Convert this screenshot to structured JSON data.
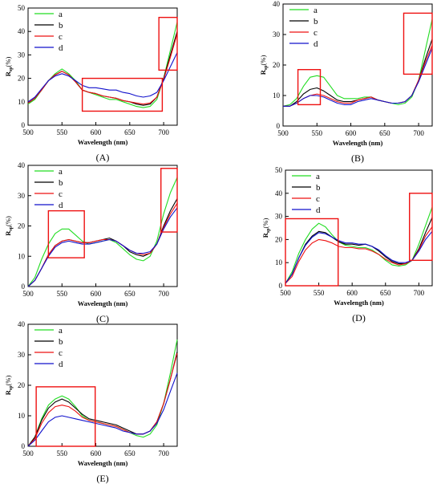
{
  "figure": {
    "colors": {
      "a": "#22dd22",
      "b": "#000000",
      "c": "#ee1111",
      "d": "#1111cc",
      "box": "#ee1111"
    }
  },
  "chart_data": [
    {
      "panel": "(A)",
      "type": "line",
      "xlabel": "Wavelength (nm)",
      "ylabel": "R",
      "ylabel_sub": "sp",
      "ylabel_unit": "(%)",
      "xlim": [
        500,
        720
      ],
      "ylim": [
        0,
        50
      ],
      "xticks": [
        500,
        550,
        600,
        650,
        700
      ],
      "yticks": [
        0,
        10,
        20,
        30,
        40,
        50
      ],
      "grid": false,
      "legend": "top-left",
      "x": [
        500,
        510,
        520,
        530,
        540,
        550,
        560,
        570,
        580,
        590,
        600,
        610,
        620,
        630,
        640,
        650,
        660,
        670,
        680,
        690,
        700,
        710,
        720
      ],
      "series": [
        {
          "name": "a",
          "values": [
            9,
            11,
            15,
            19,
            22,
            24,
            22,
            19,
            15,
            14,
            13,
            12,
            11,
            11,
            10,
            9,
            8,
            7.5,
            8,
            11,
            20,
            32,
            44
          ]
        },
        {
          "name": "b",
          "values": [
            9.5,
            11.5,
            15,
            19,
            21.5,
            23,
            21.5,
            18.5,
            15,
            14,
            13.5,
            12.5,
            12,
            11.5,
            10.5,
            10,
            9,
            8.5,
            9,
            12,
            20,
            30,
            40
          ]
        },
        {
          "name": "c",
          "values": [
            9.5,
            11.5,
            15,
            19,
            21.5,
            23,
            21.5,
            18.5,
            15,
            14,
            13.5,
            12.5,
            12,
            11.5,
            10.5,
            10,
            9.5,
            9,
            9.5,
            12,
            19.5,
            29,
            39
          ]
        },
        {
          "name": "d",
          "values": [
            10,
            12,
            15.5,
            19,
            21,
            22,
            21,
            19,
            17,
            16,
            16,
            15.5,
            15,
            15,
            14,
            13.5,
            12.5,
            12,
            12.5,
            14,
            19,
            25,
            31
          ]
        }
      ],
      "boxes": [
        {
          "x": [
            580,
            698
          ],
          "y": [
            6,
            20
          ]
        },
        {
          "x": [
            693,
            720
          ],
          "y": [
            23.5,
            46
          ]
        }
      ]
    },
    {
      "panel": "(B)",
      "type": "line",
      "xlabel": "Wavelength (nm)",
      "ylabel": "R",
      "ylabel_sub": "sp",
      "ylabel_unit": "(%)",
      "xlim": [
        500,
        720
      ],
      "ylim": [
        0,
        40
      ],
      "xticks": [
        500,
        550,
        600,
        650,
        700
      ],
      "yticks": [
        0,
        10,
        20,
        30,
        40
      ],
      "grid": false,
      "legend": "top-left",
      "x": [
        500,
        510,
        520,
        530,
        540,
        550,
        560,
        570,
        580,
        590,
        600,
        610,
        620,
        630,
        640,
        650,
        660,
        670,
        680,
        690,
        700,
        710,
        720
      ],
      "series": [
        {
          "name": "a",
          "values": [
            6.5,
            7,
            9,
            13,
            16,
            16.5,
            16,
            13,
            10,
            9,
            9,
            9,
            9.5,
            9.5,
            8.5,
            8,
            7.5,
            7,
            7.5,
            9.5,
            15,
            25,
            35
          ]
        },
        {
          "name": "b",
          "values": [
            6.5,
            6.5,
            8,
            10.5,
            12,
            12.5,
            11.5,
            10,
            8.5,
            8,
            8,
            8.5,
            9,
            9.5,
            8.5,
            8,
            7.5,
            7.5,
            8,
            10,
            15,
            22,
            28.5
          ]
        },
        {
          "name": "c",
          "values": [
            6.5,
            6.5,
            7.5,
            9,
            10,
            10.5,
            10,
            9,
            8,
            7.5,
            7.5,
            8.5,
            9,
            9.5,
            8.5,
            8,
            7.5,
            7.5,
            8,
            10,
            15,
            21,
            26.5
          ]
        },
        {
          "name": "d",
          "values": [
            6.5,
            6.5,
            7.5,
            9,
            10,
            10,
            9.5,
            8.5,
            7.5,
            7,
            7,
            8,
            8.5,
            9,
            8.5,
            8,
            7.5,
            7.5,
            8,
            10,
            14.5,
            20,
            25.5
          ]
        }
      ],
      "boxes": [
        {
          "x": [
            522,
            555
          ],
          "y": [
            7,
            18.5
          ]
        },
        {
          "x": [
            678,
            720
          ],
          "y": [
            17,
            37
          ]
        }
      ]
    },
    {
      "panel": "(C)",
      "type": "line",
      "xlabel": "Wavelength (nm)",
      "ylabel": "R",
      "ylabel_sub": "sp",
      "ylabel_unit": "(%)",
      "xlim": [
        500,
        720
      ],
      "ylim": [
        0,
        40
      ],
      "xticks": [
        500,
        550,
        600,
        650,
        700
      ],
      "yticks": [
        0,
        10,
        20,
        30,
        40
      ],
      "grid": false,
      "legend": "top-left",
      "x": [
        500,
        510,
        520,
        530,
        540,
        550,
        560,
        570,
        580,
        590,
        600,
        610,
        620,
        630,
        640,
        650,
        660,
        670,
        680,
        690,
        700,
        710,
        720
      ],
      "series": [
        {
          "name": "a",
          "values": [
            0,
            3,
            9,
            14,
            17.5,
            19,
            19,
            17,
            15,
            14,
            14.5,
            15,
            15.5,
            14.5,
            12.5,
            10.5,
            9,
            8.5,
            10,
            15,
            24,
            31,
            36
          ]
        },
        {
          "name": "b",
          "values": [
            0,
            2,
            6,
            10.5,
            13.5,
            15,
            15.5,
            15,
            14.5,
            14.5,
            15,
            15.5,
            16,
            15,
            13.5,
            11.5,
            10.5,
            10,
            11,
            14,
            20,
            25,
            29
          ]
        },
        {
          "name": "c",
          "values": [
            0,
            2,
            6,
            10.5,
            13.5,
            15,
            15.5,
            15,
            14.5,
            14.5,
            15,
            15.5,
            15.5,
            15,
            13.5,
            12,
            11,
            10.5,
            11,
            14,
            19.5,
            24,
            27.5
          ]
        },
        {
          "name": "d",
          "values": [
            0,
            2,
            6,
            10,
            13,
            14.5,
            15,
            14.5,
            14,
            14,
            14.5,
            15,
            15.5,
            15,
            13.5,
            12,
            11,
            11,
            11.5,
            14,
            19,
            23,
            26
          ]
        }
      ],
      "boxes": [
        {
          "x": [
            530,
            583
          ],
          "y": [
            9.5,
            25
          ]
        },
        {
          "x": [
            696,
            720
          ],
          "y": [
            18,
            39
          ]
        }
      ]
    },
    {
      "panel": "(D)",
      "type": "line",
      "xlabel": "Wavelength (nm)",
      "ylabel": "R",
      "ylabel_sub": "sp",
      "ylabel_unit": "(%)",
      "xlim": [
        500,
        720
      ],
      "ylim": [
        0,
        50
      ],
      "xticks": [
        500,
        550,
        600,
        650,
        700
      ],
      "yticks": [
        0,
        10,
        20,
        30,
        40,
        50
      ],
      "grid": false,
      "legend": "top-left",
      "x": [
        500,
        510,
        520,
        530,
        540,
        550,
        560,
        570,
        580,
        590,
        600,
        610,
        620,
        630,
        640,
        650,
        660,
        670,
        680,
        690,
        700,
        710,
        720
      ],
      "series": [
        {
          "name": "a",
          "values": [
            1,
            6,
            14,
            20,
            24.5,
            27,
            25.5,
            22,
            19,
            17.5,
            17,
            16.5,
            16.5,
            15.5,
            13.5,
            11,
            9,
            8.5,
            9,
            11,
            18,
            26,
            34
          ]
        },
        {
          "name": "b",
          "values": [
            1,
            5,
            12,
            18,
            21.5,
            23.5,
            23,
            21,
            19,
            18,
            18,
            17.5,
            18,
            17,
            15,
            12.5,
            10.5,
            9.5,
            9.5,
            11,
            16,
            23,
            29.5
          ]
        },
        {
          "name": "c",
          "values": [
            1,
            4,
            10.5,
            15.5,
            18.5,
            20,
            19.5,
            18.5,
            17,
            16.5,
            16.5,
            16,
            16,
            15,
            13.5,
            11.5,
            10,
            9,
            9.5,
            11,
            15.5,
            21.5,
            25.5
          ]
        },
        {
          "name": "d",
          "values": [
            1,
            5,
            12,
            17.5,
            21,
            23,
            22.5,
            21,
            19.5,
            18.5,
            18.5,
            18,
            18,
            17,
            15.5,
            13,
            11,
            10,
            10,
            11,
            15,
            20,
            23.5
          ]
        }
      ],
      "boxes": [
        {
          "x": [
            500,
            579
          ],
          "y": [
            0,
            29
          ]
        },
        {
          "x": [
            686,
            720
          ],
          "y": [
            11,
            40
          ]
        }
      ]
    },
    {
      "panel": "(E)",
      "type": "line",
      "xlabel": "Wavelength (nm)",
      "ylabel": "R",
      "ylabel_sub": "sp",
      "ylabel_unit": "(%)",
      "xlim": [
        500,
        720
      ],
      "ylim": [
        0,
        40
      ],
      "xticks": [
        500,
        550,
        600,
        650,
        700
      ],
      "yticks": [
        0,
        10,
        20,
        30,
        40
      ],
      "grid": false,
      "legend": "top-left",
      "x": [
        500,
        510,
        520,
        530,
        540,
        550,
        560,
        570,
        580,
        590,
        600,
        610,
        620,
        630,
        640,
        650,
        660,
        670,
        680,
        690,
        700,
        710,
        720
      ],
      "series": [
        {
          "name": "a",
          "values": [
            0,
            3,
            9,
            13.5,
            15.5,
            16.5,
            15.5,
            13,
            10,
            8.5,
            8,
            7.5,
            7,
            6.5,
            5.5,
            4.5,
            3.5,
            3,
            4,
            7,
            14,
            24,
            35
          ]
        },
        {
          "name": "b",
          "values": [
            0,
            3,
            8.5,
            12.5,
            14.5,
            15.5,
            14.5,
            12.5,
            10.5,
            9,
            8.5,
            8,
            7.5,
            7,
            6,
            5,
            4,
            4,
            5,
            8,
            14,
            22,
            31
          ]
        },
        {
          "name": "c",
          "values": [
            0,
            2.5,
            7.5,
            11,
            13,
            13.5,
            13,
            11.5,
            9.5,
            8.5,
            8,
            7.5,
            7,
            6.5,
            5.5,
            4.5,
            4,
            4,
            5,
            8,
            14,
            22,
            30.5
          ]
        },
        {
          "name": "d",
          "values": [
            0,
            2,
            5,
            8,
            9.5,
            10,
            9.5,
            9,
            8.5,
            8,
            7.5,
            7,
            6.5,
            6,
            5,
            4.5,
            4,
            4,
            5,
            7.5,
            12,
            18,
            24
          ]
        }
      ],
      "boxes": [
        {
          "x": [
            512,
            599
          ],
          "y": [
            0,
            19.5
          ]
        }
      ]
    }
  ]
}
